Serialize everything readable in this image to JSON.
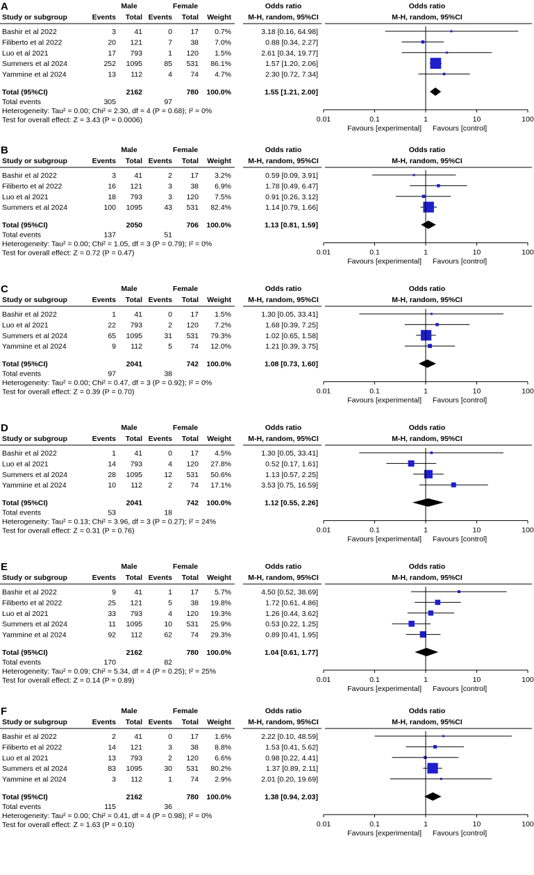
{
  "figure": {
    "column_headers": {
      "study": "Study or subgroup",
      "group1": "Male",
      "group2": "Female",
      "events": "Events",
      "total": "Total",
      "weight": "Weight",
      "or_title": "Odds ratio",
      "or_method": "M-H, random, 95%CI"
    },
    "axis": {
      "ticks": [
        0.01,
        0.1,
        1,
        10,
        100
      ],
      "tick_labels": [
        "0.01",
        "0.1",
        "1",
        "10",
        "100"
      ],
      "favours_left": "Favours [experimental]",
      "favours_right": "Favours [control]"
    },
    "labels": {
      "total_label": "Total (95%CI)",
      "total_events_label": "Total events"
    },
    "colors": {
      "marker": "#1f1fcc",
      "line": "#000000",
      "diamond": "#000000"
    }
  },
  "chart_data": [
    {
      "type": "forest",
      "panel": "A",
      "studies": [
        {
          "name": "Bashir et al 2022",
          "male_events": "3",
          "male_total": "41",
          "female_events": "0",
          "female_total": "17",
          "weight": "0.7%",
          "or_text": "3.18 [0.16, 64.98]",
          "or": 3.18,
          "lo": 0.16,
          "hi": 64.98
        },
        {
          "name": "Filiberto et al 2022",
          "male_events": "20",
          "male_total": "121",
          "female_events": "7",
          "female_total": "38",
          "weight": "7.0%",
          "or_text": "0.88 [0.34, 2.27]",
          "or": 0.88,
          "lo": 0.34,
          "hi": 2.27
        },
        {
          "name": "Luo et al 2021",
          "male_events": "17",
          "male_total": "793",
          "female_events": "1",
          "female_total": "120",
          "weight": "1.5%",
          "or_text": "2.61 [0.34, 19.77]",
          "or": 2.61,
          "lo": 0.34,
          "hi": 19.77
        },
        {
          "name": "Summers et al 2024",
          "male_events": "252",
          "male_total": "1095",
          "female_events": "85",
          "female_total": "531",
          "weight": "86.1%",
          "or_text": "1.57 [1.20, 2.06]",
          "or": 1.57,
          "lo": 1.2,
          "hi": 2.06
        },
        {
          "name": "Yammine et al 2024",
          "male_events": "13",
          "male_total": "112",
          "female_events": "4",
          "female_total": "74",
          "weight": "4.7%",
          "or_text": "2.30 [0.72, 7.34]",
          "or": 2.3,
          "lo": 0.72,
          "hi": 7.34
        }
      ],
      "total": {
        "male_total": "2162",
        "female_total": "780",
        "weight": "100.0%",
        "or_text": "1.55 [1.21, 2.00]",
        "or": 1.55,
        "lo": 1.21,
        "hi": 2.0
      },
      "total_events": {
        "male": "305",
        "female": "97"
      },
      "heterogeneity": "Heterogeneity: Tau² = 0.00; Chi² = 2.30, df = 4 (P = 0.68); I² = 0%",
      "overall_effect": "Test for overall effect: Z = 3.43 (P = 0.0006)"
    },
    {
      "type": "forest",
      "panel": "B",
      "studies": [
        {
          "name": "Bashir et al 2022",
          "male_events": "3",
          "male_total": "41",
          "female_events": "2",
          "female_total": "17",
          "weight": "3.2%",
          "or_text": "0.59 [0.09, 3.91]",
          "or": 0.59,
          "lo": 0.09,
          "hi": 3.91
        },
        {
          "name": "Filiberto et al 2022",
          "male_events": "16",
          "male_total": "121",
          "female_events": "3",
          "female_total": "38",
          "weight": "6.9%",
          "or_text": "1.78 [0.49, 6.47]",
          "or": 1.78,
          "lo": 0.49,
          "hi": 6.47
        },
        {
          "name": "Luo et al 2021",
          "male_events": "18",
          "male_total": "793",
          "female_events": "3",
          "female_total": "120",
          "weight": "7.5%",
          "or_text": "0.91 [0.26, 3.12]",
          "or": 0.91,
          "lo": 0.26,
          "hi": 3.12
        },
        {
          "name": "Summers et al 2024",
          "male_events": "100",
          "male_total": "1095",
          "female_events": "43",
          "female_total": "531",
          "weight": "82.4%",
          "or_text": "1.14 [0.79, 1.66]",
          "or": 1.14,
          "lo": 0.79,
          "hi": 1.66
        }
      ],
      "total": {
        "male_total": "2050",
        "female_total": "706",
        "weight": "100.0%",
        "or_text": "1.13 [0.81, 1.59]",
        "or": 1.13,
        "lo": 0.81,
        "hi": 1.59
      },
      "total_events": {
        "male": "137",
        "female": "51"
      },
      "heterogeneity": "Heterogeneity: Tau² = 0.00; Chi² = 1.05, df = 3 (P = 0.79); I² = 0%",
      "overall_effect": "Test for overall effect: Z = 0.72 (P = 0.47)"
    },
    {
      "type": "forest",
      "panel": "C",
      "studies": [
        {
          "name": "Bashir et al 2022",
          "male_events": "1",
          "male_total": "41",
          "female_events": "0",
          "female_total": "17",
          "weight": "1.5%",
          "or_text": "1.30 [0.05, 33.41]",
          "or": 1.3,
          "lo": 0.05,
          "hi": 33.41
        },
        {
          "name": "Luo et al 2021",
          "male_events": "22",
          "male_total": "793",
          "female_events": "2",
          "female_total": "120",
          "weight": "7.2%",
          "or_text": "1.68 [0.39, 7.25]",
          "or": 1.68,
          "lo": 0.39,
          "hi": 7.25
        },
        {
          "name": "Summers et al 2024",
          "male_events": "65",
          "male_total": "1095",
          "female_events": "31",
          "female_total": "531",
          "weight": "79.3%",
          "or_text": "1.02 [0.65, 1.58]",
          "or": 1.02,
          "lo": 0.65,
          "hi": 1.58
        },
        {
          "name": "Yammine et al 2024",
          "male_events": "9",
          "male_total": "112",
          "female_events": "5",
          "female_total": "74",
          "weight": "12.0%",
          "or_text": "1.21 [0.39, 3.75]",
          "or": 1.21,
          "lo": 0.39,
          "hi": 3.75
        }
      ],
      "total": {
        "male_total": "2041",
        "female_total": "742",
        "weight": "100.0%",
        "or_text": "1.08 [0.73, 1.60]",
        "or": 1.08,
        "lo": 0.73,
        "hi": 1.6
      },
      "total_events": {
        "male": "97",
        "female": "38"
      },
      "heterogeneity": "Heterogeneity: Tau² = 0.00; Chi² = 0.47, df = 3 (P = 0.92); I² = 0%",
      "overall_effect": "Test for overall effect: Z = 0.39 (P = 0.70)"
    },
    {
      "type": "forest",
      "panel": "D",
      "studies": [
        {
          "name": "Bashir et al 2022",
          "male_events": "1",
          "male_total": "41",
          "female_events": "0",
          "female_total": "17",
          "weight": "4.5%",
          "or_text": "1.30 [0.05, 33.41]",
          "or": 1.3,
          "lo": 0.05,
          "hi": 33.41
        },
        {
          "name": "Luo et al 2021",
          "male_events": "14",
          "male_total": "793",
          "female_events": "4",
          "female_total": "120",
          "weight": "27.8%",
          "or_text": "0.52 [0.17, 1.61]",
          "or": 0.52,
          "lo": 0.17,
          "hi": 1.61
        },
        {
          "name": "Summers et al 2024",
          "male_events": "28",
          "male_total": "1095",
          "female_events": "12",
          "female_total": "531",
          "weight": "50.6%",
          "or_text": "1.13 [0.57, 2.25]",
          "or": 1.13,
          "lo": 0.57,
          "hi": 2.25
        },
        {
          "name": "Yammine et al 2024",
          "male_events": "10",
          "male_total": "112",
          "female_events": "2",
          "female_total": "74",
          "weight": "17.1%",
          "or_text": "3.53 [0.75, 16.59]",
          "or": 3.53,
          "lo": 0.75,
          "hi": 16.59
        }
      ],
      "total": {
        "male_total": "2041",
        "female_total": "742",
        "weight": "100.0%",
        "or_text": "1.12 [0.55, 2.26]",
        "or": 1.12,
        "lo": 0.55,
        "hi": 2.26
      },
      "total_events": {
        "male": "53",
        "female": "18"
      },
      "heterogeneity": "Heterogeneity: Tau² = 0.13; Chi² = 3.96, df = 3 (P = 0.27); I² = 24%",
      "overall_effect": "Test for overall effect: Z = 0.31 (P = 0.76)"
    },
    {
      "type": "forest",
      "panel": "E",
      "studies": [
        {
          "name": "Bashir et al 2022",
          "male_events": "9",
          "male_total": "41",
          "female_events": "1",
          "female_total": "17",
          "weight": "5.7%",
          "or_text": "4.50 [0.52, 38.69]",
          "or": 4.5,
          "lo": 0.52,
          "hi": 38.69
        },
        {
          "name": "Filiberto et al 2022",
          "male_events": "25",
          "male_total": "121",
          "female_events": "5",
          "female_total": "38",
          "weight": "19.8%",
          "or_text": "1.72 [0.61, 4.86]",
          "or": 1.72,
          "lo": 0.61,
          "hi": 4.86
        },
        {
          "name": "Luo et al 2021",
          "male_events": "33",
          "male_total": "793",
          "female_events": "4",
          "female_total": "120",
          "weight": "19.3%",
          "or_text": "1.26 [0.44, 3.62]",
          "or": 1.26,
          "lo": 0.44,
          "hi": 3.62
        },
        {
          "name": "Summers et al 2024",
          "male_events": "11",
          "male_total": "1095",
          "female_events": "10",
          "female_total": "531",
          "weight": "25.9%",
          "or_text": "0.53 [0.22, 1.25]",
          "or": 0.53,
          "lo": 0.22,
          "hi": 1.25
        },
        {
          "name": "Yammine et al 2024",
          "male_events": "92",
          "male_total": "112",
          "female_events": "62",
          "female_total": "74",
          "weight": "29.3%",
          "or_text": "0.89 [0.41, 1.95]",
          "or": 0.89,
          "lo": 0.41,
          "hi": 1.95
        }
      ],
      "total": {
        "male_total": "2162",
        "female_total": "780",
        "weight": "100.0%",
        "or_text": "1.04 [0.61, 1.77]",
        "or": 1.04,
        "lo": 0.61,
        "hi": 1.77
      },
      "total_events": {
        "male": "170",
        "female": "82"
      },
      "heterogeneity": "Heterogeneity: Tau² = 0.09; Chi² = 5.34, df = 4 (P = 0.25); I² = 25%",
      "overall_effect": "Test for overall effect: Z = 0.14 (P = 0.89)"
    },
    {
      "type": "forest",
      "panel": "F",
      "studies": [
        {
          "name": "Bashir et al 2022",
          "male_events": "2",
          "male_total": "41",
          "female_events": "0",
          "female_total": "17",
          "weight": "1.6%",
          "or_text": "2.22 [0.10, 48.59]",
          "or": 2.22,
          "lo": 0.1,
          "hi": 48.59
        },
        {
          "name": "Filiberto et al 2022",
          "male_events": "14",
          "male_total": "121",
          "female_events": "3",
          "female_total": "38",
          "weight": "8.8%",
          "or_text": "1.53 [0.41, 5.62]",
          "or": 1.53,
          "lo": 0.41,
          "hi": 5.62
        },
        {
          "name": "Luo et al 2021",
          "male_events": "13",
          "male_total": "793",
          "female_events": "2",
          "female_total": "120",
          "weight": "6.6%",
          "or_text": "0.98 [0.22, 4.41]",
          "or": 0.98,
          "lo": 0.22,
          "hi": 4.41
        },
        {
          "name": "Summers et al 2024",
          "male_events": "83",
          "male_total": "1095",
          "female_events": "30",
          "female_total": "531",
          "weight": "80.2%",
          "or_text": "1.37 [0.89, 2.11]",
          "or": 1.37,
          "lo": 0.89,
          "hi": 2.11
        },
        {
          "name": "Yammine et al 2024",
          "male_events": "3",
          "male_total": "112",
          "female_events": "1",
          "female_total": "74",
          "weight": "2.9%",
          "or_text": "2.01 [0.20, 19.69]",
          "or": 2.01,
          "lo": 0.2,
          "hi": 19.69
        }
      ],
      "total": {
        "male_total": "2162",
        "female_total": "780",
        "weight": "100.0%",
        "or_text": "1.38 [0.94, 2.03]",
        "or": 1.38,
        "lo": 0.94,
        "hi": 2.03
      },
      "total_events": {
        "male": "115",
        "female": "36"
      },
      "heterogeneity": "Heterogeneity: Tau² = 0.00; Chi² = 0.41, df = 4 (P = 0.98); I² = 0%",
      "overall_effect": "Test for overall effect: Z = 1.63 (P = 0.10)"
    }
  ]
}
